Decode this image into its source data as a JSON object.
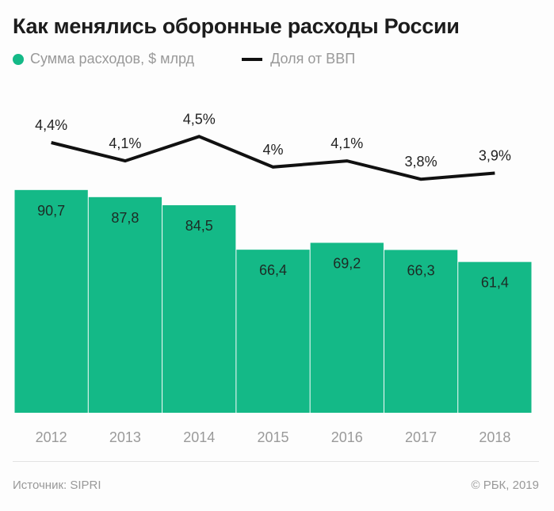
{
  "title": "Как менялись оборонные расходы России",
  "legend": {
    "bars_label": "Сумма расходов, $ млрд",
    "line_label": "Доля от ВВП"
  },
  "footer": {
    "source": "Источник: SIPRI",
    "copyright": "© РБК, 2019"
  },
  "colors": {
    "bar": "#14b987",
    "line": "#111111"
  },
  "chart_data": {
    "type": "bar",
    "title": "Как менялись оборонные расходы России",
    "xlabel": "",
    "ylabel": "",
    "categories": [
      "2012",
      "2013",
      "2014",
      "2015",
      "2016",
      "2017",
      "2018"
    ],
    "series": [
      {
        "name": "Сумма расходов, $ млрд",
        "type": "bar",
        "values": [
          90.7,
          87.8,
          84.5,
          66.4,
          69.2,
          66.3,
          61.4
        ],
        "labels": [
          "90,7",
          "87,8",
          "84,5",
          "66,4",
          "69,2",
          "66,3",
          "61,4"
        ]
      },
      {
        "name": "Доля от ВВП",
        "type": "line",
        "unit": "%",
        "values": [
          4.4,
          4.1,
          4.5,
          4.0,
          4.1,
          3.8,
          3.9
        ],
        "labels": [
          "4,4%",
          "4,1%",
          "4,5%",
          "4%",
          "4,1%",
          "3,8%",
          "3,9%"
        ]
      }
    ],
    "grid": false,
    "legend_position": "top-left"
  }
}
